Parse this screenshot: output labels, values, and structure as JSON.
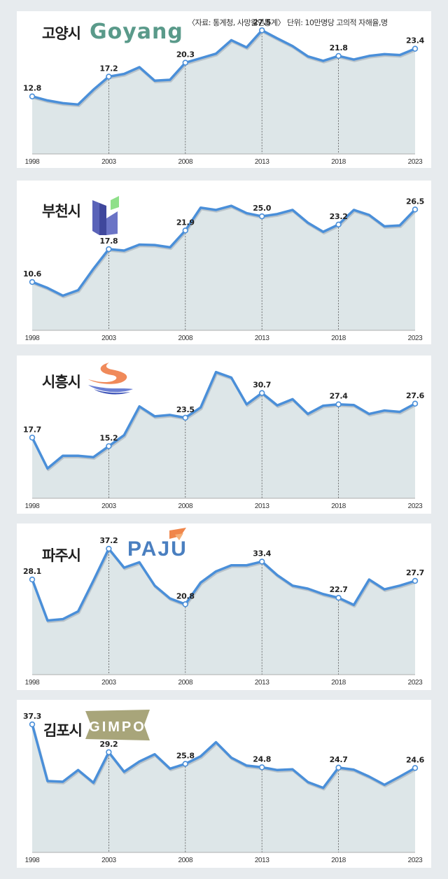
{
  "source_note": "〈자료: 통계청, 사망원인통계〉 단위: 10만명당 고의적 자해율,명",
  "colors": {
    "line": "#4a8fd9",
    "fill": "#dde6e8",
    "grid": "#555555",
    "background": "#e7ebee"
  },
  "logos": {
    "goyang": {
      "text": "Goyang",
      "color": "#5a9a8a"
    },
    "bucheon": {
      "icon": "bucheon-logo-icon"
    },
    "siheung": {
      "icon": "siheung-logo-icon"
    },
    "paju": {
      "text": "PAJU",
      "color": "#4a7fc0"
    },
    "gimpo": {
      "text": "GIMPO",
      "color": "#a8a57a"
    }
  },
  "chart_data": [
    {
      "type": "area",
      "title": "고양시",
      "x_tick_labels": [
        "1998",
        "2003",
        "2008",
        "2013",
        "2018",
        "2023"
      ],
      "x": [
        1998,
        1999,
        2000,
        2001,
        2002,
        2003,
        2004,
        2005,
        2006,
        2007,
        2008,
        2009,
        2010,
        2011,
        2012,
        2013,
        2014,
        2015,
        2016,
        2017,
        2018,
        2019,
        2020,
        2021,
        2022,
        2023
      ],
      "values": [
        12.8,
        11.9,
        11.3,
        11.0,
        14.3,
        17.2,
        17.8,
        19.3,
        16.3,
        16.5,
        20.3,
        21.3,
        22.3,
        25.3,
        23.7,
        27.5,
        25.7,
        24.0,
        21.7,
        20.7,
        21.8,
        21.0,
        21.8,
        22.2,
        22.0,
        23.4
      ],
      "labeled_years": [
        1998,
        2003,
        2008,
        2013,
        2018,
        2023
      ],
      "labels": [
        "12.8",
        "17.2",
        "20.3",
        "27.5",
        "21.8",
        "23.4"
      ],
      "ylim": [
        0,
        30.5
      ]
    },
    {
      "type": "area",
      "title": "부천시",
      "x_tick_labels": [
        "1998",
        "2003",
        "2008",
        "2013",
        "2018",
        "2023"
      ],
      "x": [
        1998,
        1999,
        2000,
        2001,
        2002,
        2003,
        2004,
        2005,
        2006,
        2007,
        2008,
        2009,
        2010,
        2011,
        2012,
        2013,
        2014,
        2015,
        2016,
        2017,
        2018,
        2019,
        2020,
        2021,
        2022,
        2023
      ],
      "values": [
        10.6,
        9.3,
        7.6,
        8.8,
        13.5,
        17.8,
        17.5,
        18.8,
        18.7,
        18.2,
        21.9,
        26.9,
        26.4,
        27.3,
        25.7,
        25.0,
        25.5,
        26.4,
        23.6,
        21.6,
        23.2,
        26.4,
        25.3,
        22.8,
        23.0,
        26.5
      ],
      "labeled_years": [
        1998,
        2003,
        2008,
        2013,
        2018,
        2023
      ],
      "labels": [
        "10.6",
        "17.8",
        "21.9",
        "25.0",
        "23.2",
        "26.5"
      ],
      "ylim": [
        0,
        31
      ]
    },
    {
      "type": "area",
      "title": "시흥시",
      "x_tick_labels": [
        "1998",
        "2003",
        "2008",
        "2013",
        "2018",
        "2023"
      ],
      "x": [
        1998,
        1999,
        2000,
        2001,
        2002,
        2003,
        2004,
        2005,
        2006,
        2007,
        2008,
        2009,
        2010,
        2011,
        2012,
        2013,
        2014,
        2015,
        2016,
        2017,
        2018,
        2019,
        2020,
        2021,
        2022,
        2023
      ],
      "values": [
        17.7,
        8.7,
        12.4,
        12.4,
        12.0,
        15.2,
        18.4,
        26.8,
        23.9,
        24.3,
        23.5,
        26.5,
        36.8,
        35.2,
        27.4,
        30.7,
        27.1,
        28.9,
        24.6,
        27.0,
        27.4,
        27.2,
        24.6,
        25.6,
        25.2,
        27.6
      ],
      "labeled_years": [
        1998,
        2003,
        2008,
        2013,
        2018,
        2023
      ],
      "labels": [
        "17.7",
        "15.2",
        "23.5",
        "30.7",
        "27.4",
        "27.6"
      ],
      "ylim": [
        0,
        40
      ]
    },
    {
      "type": "area",
      "title": "파주시",
      "x_tick_labels": [
        "1998",
        "2003",
        "2008",
        "2013",
        "2018",
        "2023"
      ],
      "x": [
        1998,
        1999,
        2000,
        2001,
        2002,
        2003,
        2004,
        2005,
        2006,
        2007,
        2008,
        2009,
        2010,
        2011,
        2012,
        2013,
        2014,
        2015,
        2016,
        2017,
        2018,
        2019,
        2020,
        2021,
        2022,
        2023
      ],
      "values": [
        28.1,
        16.0,
        16.4,
        18.7,
        27.8,
        37.2,
        31.6,
        33.2,
        26.3,
        22.5,
        20.8,
        27.2,
        30.5,
        32.3,
        32.3,
        33.4,
        29.4,
        26.3,
        25.4,
        23.8,
        22.7,
        20.6,
        28.1,
        25.2,
        26.3,
        27.7
      ],
      "labeled_years": [
        1998,
        2003,
        2008,
        2013,
        2018,
        2023
      ],
      "labels": [
        "28.1",
        "37.2",
        "20.8",
        "33.4",
        "22.7",
        "27.7"
      ],
      "ylim": [
        0,
        43
      ]
    },
    {
      "type": "area",
      "title": "김포시",
      "x_tick_labels": [
        "1998",
        "2003",
        "2008",
        "2013",
        "2018",
        "2023"
      ],
      "x": [
        1998,
        1999,
        2000,
        2001,
        2002,
        2003,
        2004,
        2005,
        2006,
        2007,
        2008,
        2009,
        2010,
        2011,
        2012,
        2013,
        2014,
        2015,
        2016,
        2017,
        2018,
        2019,
        2020,
        2021,
        2022,
        2023
      ],
      "values": [
        37.3,
        20.8,
        20.6,
        24.0,
        20.3,
        29.2,
        23.5,
        26.5,
        28.6,
        24.4,
        25.8,
        28.0,
        32.1,
        27.6,
        25.3,
        24.8,
        24.0,
        24.2,
        20.5,
        18.8,
        24.7,
        24.1,
        22.1,
        19.7,
        22.1,
        24.6
      ],
      "labeled_years": [
        1998,
        2003,
        2008,
        2013,
        2018,
        2023
      ],
      "labels": [
        "37.3",
        "29.2",
        "25.8",
        "24.8",
        "24.7",
        "24.6"
      ],
      "ylim": [
        0,
        42
      ]
    }
  ]
}
